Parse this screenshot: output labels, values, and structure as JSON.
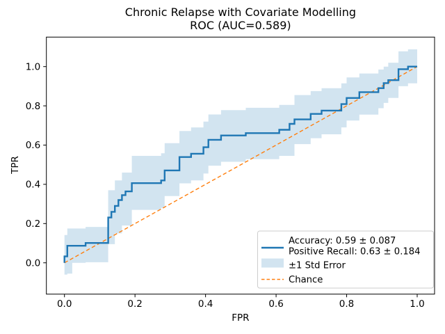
{
  "chart_data": {
    "type": "line",
    "subtype": "roc_curve_with_std_error_band",
    "title": "Chronic Relapse with Covariate Modelling\nROC (AUC=0.589)",
    "title_line1": "Chronic Relapse with Covariate Modelling",
    "title_line2": "ROC (AUC=0.589)",
    "auc": 0.589,
    "stats": {
      "accuracy": "0.59 ± 0.087",
      "positive_recall": "0.63 ± 0.184"
    },
    "xlabel": "FPR",
    "ylabel": "TPR",
    "xlim": [
      -0.051,
      1.049
    ],
    "ylim": [
      -0.16,
      1.15
    ],
    "xticks": [
      0.0,
      0.2,
      0.4,
      0.6,
      0.8,
      1.0
    ],
    "yticks": [
      0.0,
      0.2,
      0.4,
      0.6,
      0.8,
      1.0
    ],
    "xtick_labels": [
      "0.0",
      "0.2",
      "0.4",
      "0.6",
      "0.8",
      "1.0"
    ],
    "ytick_labels": [
      "0.0",
      "0.2",
      "0.4",
      "0.6",
      "0.8",
      "1.0"
    ],
    "grid": false,
    "legend_position": "lower right",
    "colors": {
      "roc_line": "#1f77b4",
      "band_fill": "rgba(31,119,180,0.2)",
      "chance_line": "#ff7f0e",
      "legend_edge": "#cccccc",
      "text": "#000000"
    },
    "series": [
      {
        "name": "ROC curve",
        "style": "step-line",
        "color": "#1f77b4",
        "points": [
          [
            0.0,
            0.0
          ],
          [
            0.0,
            0.033
          ],
          [
            0.008,
            0.033
          ],
          [
            0.008,
            0.087
          ],
          [
            0.06,
            0.087
          ],
          [
            0.06,
            0.101
          ],
          [
            0.124,
            0.101
          ],
          [
            0.124,
            0.231
          ],
          [
            0.133,
            0.231
          ],
          [
            0.133,
            0.26
          ],
          [
            0.143,
            0.26
          ],
          [
            0.143,
            0.29
          ],
          [
            0.153,
            0.29
          ],
          [
            0.153,
            0.32
          ],
          [
            0.163,
            0.32
          ],
          [
            0.163,
            0.345
          ],
          [
            0.173,
            0.345
          ],
          [
            0.173,
            0.364
          ],
          [
            0.191,
            0.364
          ],
          [
            0.191,
            0.406
          ],
          [
            0.274,
            0.406
          ],
          [
            0.274,
            0.42
          ],
          [
            0.284,
            0.42
          ],
          [
            0.284,
            0.471
          ],
          [
            0.326,
            0.471
          ],
          [
            0.326,
            0.539
          ],
          [
            0.359,
            0.539
          ],
          [
            0.359,
            0.556
          ],
          [
            0.394,
            0.556
          ],
          [
            0.394,
            0.589
          ],
          [
            0.408,
            0.589
          ],
          [
            0.408,
            0.627
          ],
          [
            0.444,
            0.627
          ],
          [
            0.444,
            0.649
          ],
          [
            0.514,
            0.649
          ],
          [
            0.514,
            0.661
          ],
          [
            0.609,
            0.661
          ],
          [
            0.609,
            0.678
          ],
          [
            0.638,
            0.678
          ],
          [
            0.638,
            0.708
          ],
          [
            0.652,
            0.708
          ],
          [
            0.652,
            0.731
          ],
          [
            0.698,
            0.731
          ],
          [
            0.698,
            0.759
          ],
          [
            0.729,
            0.759
          ],
          [
            0.729,
            0.776
          ],
          [
            0.785,
            0.776
          ],
          [
            0.785,
            0.809
          ],
          [
            0.8,
            0.809
          ],
          [
            0.8,
            0.84
          ],
          [
            0.836,
            0.84
          ],
          [
            0.836,
            0.87
          ],
          [
            0.89,
            0.87
          ],
          [
            0.89,
            0.89
          ],
          [
            0.905,
            0.89
          ],
          [
            0.905,
            0.916
          ],
          [
            0.918,
            0.916
          ],
          [
            0.918,
            0.931
          ],
          [
            0.947,
            0.931
          ],
          [
            0.947,
            0.987
          ],
          [
            0.974,
            0.987
          ],
          [
            0.974,
            1.0
          ],
          [
            1.0,
            1.0
          ]
        ]
      },
      {
        "name": "±1 Std Error band",
        "style": "band",
        "color": "#1f77b4",
        "alpha": 0.2,
        "band": [
          {
            "x": 0.0,
            "lo": -0.06,
            "hi": 0.142
          },
          {
            "x": 0.008,
            "lo": -0.055,
            "hi": 0.175
          },
          {
            "x": 0.022,
            "lo": 0.0,
            "hi": 0.175
          },
          {
            "x": 0.06,
            "lo": 0.003,
            "hi": 0.183
          },
          {
            "x": 0.124,
            "lo": 0.095,
            "hi": 0.37
          },
          {
            "x": 0.143,
            "lo": 0.15,
            "hi": 0.42
          },
          {
            "x": 0.163,
            "lo": 0.19,
            "hi": 0.46
          },
          {
            "x": 0.191,
            "lo": 0.27,
            "hi": 0.545
          },
          {
            "x": 0.274,
            "lo": 0.28,
            "hi": 0.558
          },
          {
            "x": 0.284,
            "lo": 0.34,
            "hi": 0.61
          },
          {
            "x": 0.326,
            "lo": 0.405,
            "hi": 0.672
          },
          {
            "x": 0.359,
            "lo": 0.42,
            "hi": 0.69
          },
          {
            "x": 0.394,
            "lo": 0.455,
            "hi": 0.72
          },
          {
            "x": 0.408,
            "lo": 0.495,
            "hi": 0.756
          },
          {
            "x": 0.444,
            "lo": 0.515,
            "hi": 0.778
          },
          {
            "x": 0.514,
            "lo": 0.528,
            "hi": 0.79
          },
          {
            "x": 0.609,
            "lo": 0.545,
            "hi": 0.805
          },
          {
            "x": 0.652,
            "lo": 0.605,
            "hi": 0.855
          },
          {
            "x": 0.698,
            "lo": 0.635,
            "hi": 0.875
          },
          {
            "x": 0.729,
            "lo": 0.655,
            "hi": 0.89
          },
          {
            "x": 0.785,
            "lo": 0.69,
            "hi": 0.915
          },
          {
            "x": 0.8,
            "lo": 0.725,
            "hi": 0.945
          },
          {
            "x": 0.836,
            "lo": 0.755,
            "hi": 0.965
          },
          {
            "x": 0.89,
            "lo": 0.788,
            "hi": 0.985
          },
          {
            "x": 0.905,
            "lo": 0.815,
            "hi": 1.0
          },
          {
            "x": 0.918,
            "lo": 0.84,
            "hi": 1.02
          },
          {
            "x": 0.947,
            "lo": 0.9,
            "hi": 1.078
          },
          {
            "x": 0.974,
            "lo": 0.915,
            "hi": 1.088
          },
          {
            "x": 1.0,
            "lo": 0.93,
            "hi": 1.07
          }
        ]
      },
      {
        "name": "Chance",
        "style": "dashed-line",
        "color": "#ff7f0e",
        "points": [
          [
            0,
            0
          ],
          [
            1,
            1
          ]
        ]
      }
    ],
    "legend": [
      {
        "label": "Accuracy: 0.59 ± 0.087",
        "label2": "Positive Recall: 0.63 ± 0.184",
        "swatch": "line",
        "color": "#1f77b4"
      },
      {
        "label": "±1 Std Error",
        "swatch": "patch",
        "color": "rgba(31,119,180,0.2)"
      },
      {
        "label": "Chance",
        "swatch": "dashed-line",
        "color": "#ff7f0e"
      }
    ]
  }
}
